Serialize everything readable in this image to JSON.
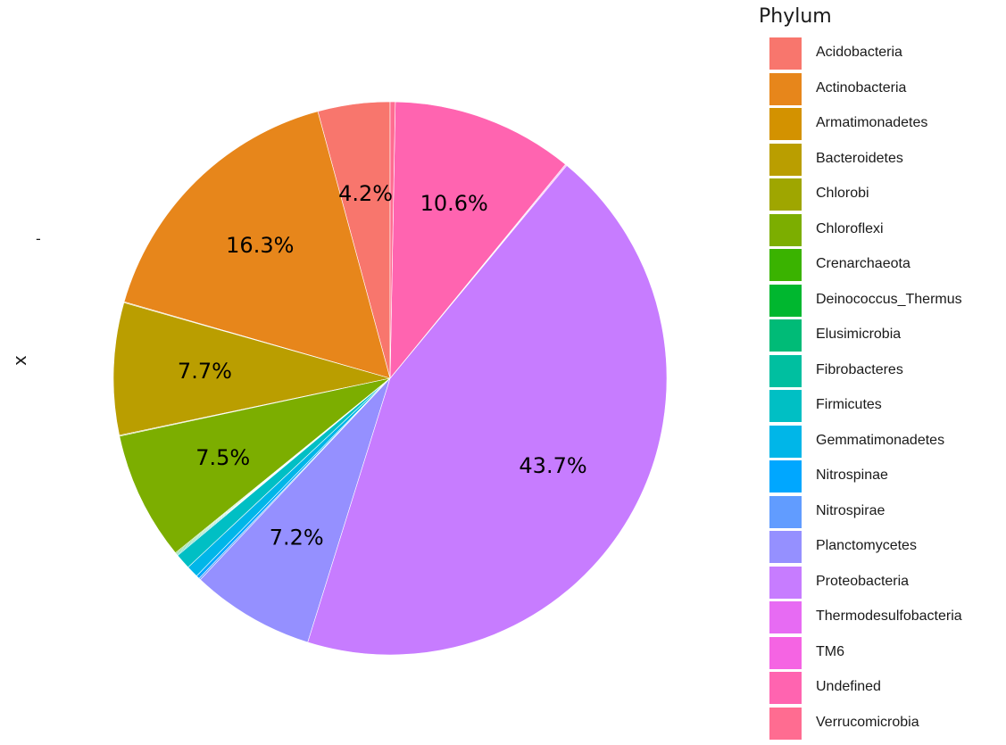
{
  "chart_data": {
    "type": "pie",
    "ylabel": "x",
    "ytick": "-",
    "legend_title": "Phylum",
    "legend_position": "right",
    "slices": [
      {
        "name": "Acidobacteria",
        "value": 4.2,
        "label": "4.2%",
        "color": "#F8766D"
      },
      {
        "name": "Actinobacteria",
        "value": 16.3,
        "label": "16.3%",
        "color": "#E7861B"
      },
      {
        "name": "Armatimonadetes",
        "value": 0.05,
        "label": "",
        "color": "#D39200"
      },
      {
        "name": "Bacteroidetes",
        "value": 7.7,
        "label": "7.7%",
        "color": "#BA9E00"
      },
      {
        "name": "Chlorobi",
        "value": 0.05,
        "label": "",
        "color": "#9FA600"
      },
      {
        "name": "Chloroflexi",
        "value": 7.5,
        "label": "7.5%",
        "color": "#7CAE00"
      },
      {
        "name": "Crenarchaeota",
        "value": 0.05,
        "label": "",
        "color": "#3AB300"
      },
      {
        "name": "Deinococcus_Thermus",
        "value": 0.05,
        "label": "",
        "color": "#00B72F"
      },
      {
        "name": "Elusimicrobia",
        "value": 0.05,
        "label": "",
        "color": "#00BB77"
      },
      {
        "name": "Fibrobacteres",
        "value": 0.05,
        "label": "",
        "color": "#00BFA0"
      },
      {
        "name": "Firmicutes",
        "value": 0.9,
        "label": "",
        "color": "#00BFC4"
      },
      {
        "name": "Gemmatimonadetes",
        "value": 0.7,
        "label": "",
        "color": "#00B6E8"
      },
      {
        "name": "Nitrospinae",
        "value": 0.2,
        "label": "",
        "color": "#00A7FF"
      },
      {
        "name": "Nitrospirae",
        "value": 0.1,
        "label": "",
        "color": "#619CFF"
      },
      {
        "name": "Planctomycetes",
        "value": 7.2,
        "label": "7.2%",
        "color": "#9590FF"
      },
      {
        "name": "Proteobacteria",
        "value": 43.7,
        "label": "43.7%",
        "color": "#C77CFF"
      },
      {
        "name": "Thermodesulfobacteria",
        "value": 0.05,
        "label": "",
        "color": "#E76BF3"
      },
      {
        "name": "TM6",
        "value": 0.05,
        "label": "",
        "color": "#F564E3"
      },
      {
        "name": "Undefined",
        "value": 10.6,
        "label": "10.6%",
        "color": "#FF64B0"
      },
      {
        "name": "Verrucomicrobia",
        "value": 0.3,
        "label": "",
        "color": "#FF6C91"
      }
    ]
  }
}
